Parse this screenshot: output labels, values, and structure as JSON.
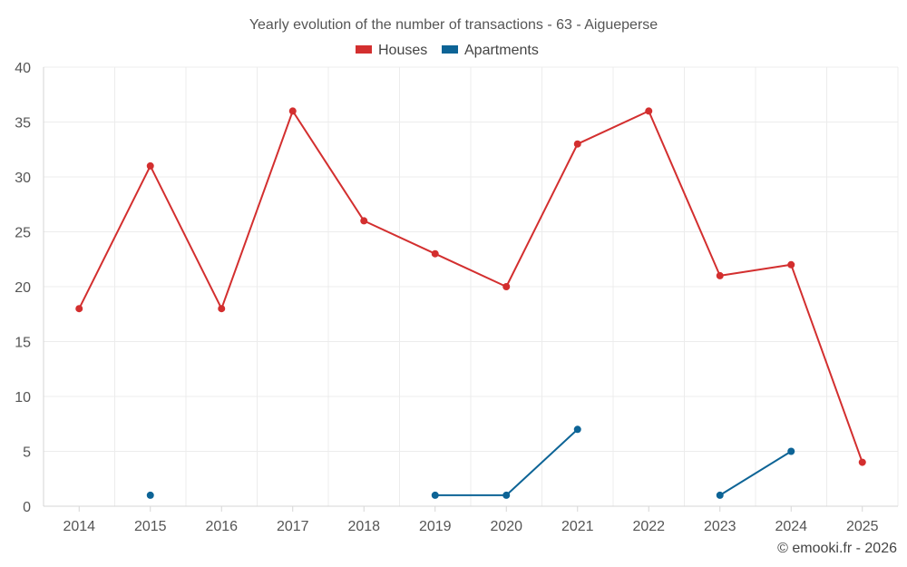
{
  "chart_data": {
    "type": "line",
    "title": "Yearly evolution of the number of transactions - 63 - Aigueperse",
    "xlabel": "",
    "ylabel": "",
    "categories": [
      "2014",
      "2015",
      "2016",
      "2017",
      "2018",
      "2019",
      "2020",
      "2021",
      "2022",
      "2023",
      "2024",
      "2025"
    ],
    "ylim": [
      0,
      40
    ],
    "yticks": [
      0,
      5,
      10,
      15,
      20,
      25,
      30,
      35,
      40
    ],
    "grid": true,
    "legend_position": "top-center",
    "series": [
      {
        "name": "Houses",
        "color": "#d32f2f",
        "values": [
          18,
          31,
          18,
          36,
          26,
          23,
          20,
          33,
          36,
          21,
          22,
          4
        ]
      },
      {
        "name": "Apartments",
        "color": "#0d6496",
        "values": [
          null,
          1,
          null,
          null,
          null,
          1,
          1,
          7,
          null,
          1,
          5,
          null
        ]
      }
    ]
  },
  "footer": {
    "copyright": "© emooki.fr - 2026"
  }
}
